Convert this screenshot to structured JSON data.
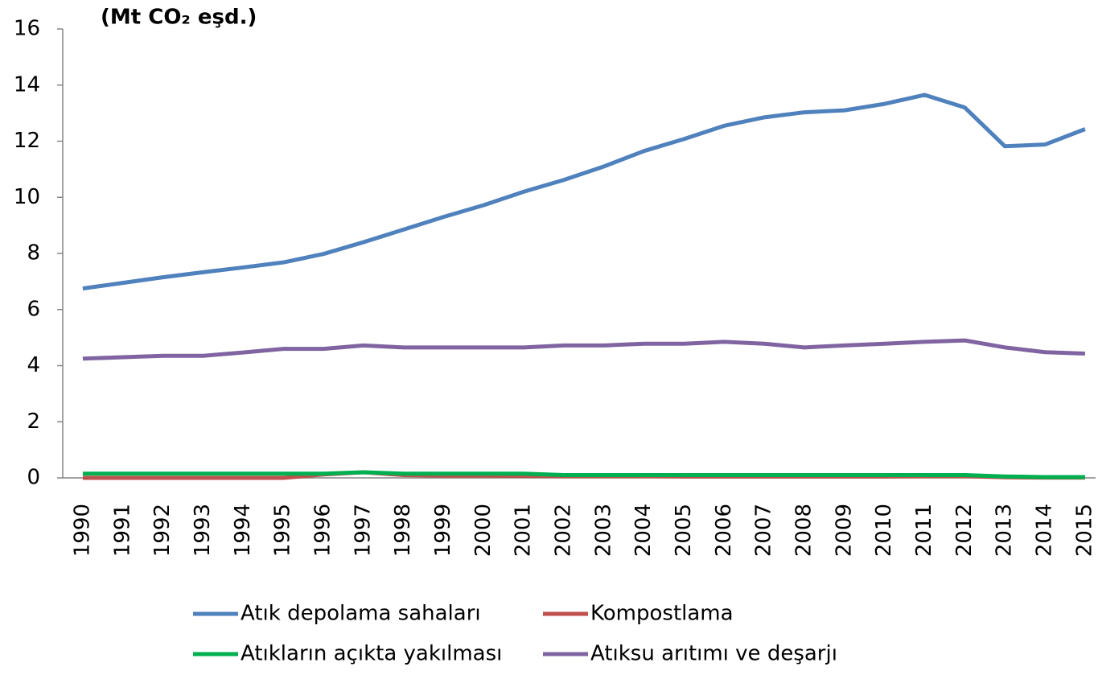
{
  "chart_data": {
    "type": "line",
    "y_label": "(Mt CO₂ eşd.)",
    "categories": [
      "1990",
      "1991",
      "1992",
      "1993",
      "1994",
      "1995",
      "1996",
      "1997",
      "1998",
      "1999",
      "2000",
      "2001",
      "2002",
      "2003",
      "2004",
      "2005",
      "2006",
      "2007",
      "2008",
      "2009",
      "2010",
      "2011",
      "2012",
      "2013",
      "2014",
      "2015"
    ],
    "series": [
      {
        "name": "Atık depolama sahaları",
        "color": "#4f81bd",
        "values": [
          6.75,
          6.95,
          7.15,
          7.33,
          7.5,
          7.68,
          7.98,
          8.4,
          8.85,
          9.3,
          9.72,
          10.2,
          10.62,
          11.1,
          11.65,
          12.08,
          12.55,
          12.85,
          13.03,
          13.1,
          13.33,
          13.65,
          13.2,
          11.82,
          11.88,
          12.43
        ]
      },
      {
        "name": "Kompostlama",
        "color": "#c0504d",
        "values": [
          0,
          0,
          0,
          0,
          0,
          0,
          0.12,
          0.2,
          0.1,
          0.08,
          0.08,
          0.07,
          0.06,
          0.06,
          0.06,
          0.05,
          0.05,
          0.05,
          0.05,
          0.05,
          0.05,
          0.06,
          0.06,
          0.02,
          0.01,
          0.01
        ]
      },
      {
        "name": "Atıkların açıkta yakılması",
        "color": "#00b050",
        "values": [
          0.15,
          0.15,
          0.15,
          0.15,
          0.15,
          0.15,
          0.15,
          0.2,
          0.15,
          0.15,
          0.15,
          0.15,
          0.1,
          0.1,
          0.1,
          0.1,
          0.1,
          0.1,
          0.1,
          0.1,
          0.1,
          0.1,
          0.1,
          0.05,
          0.03,
          0.03
        ]
      },
      {
        "name": "Atıksu arıtımı ve deşarjı",
        "color": "#8064a2",
        "values": [
          4.25,
          4.3,
          4.35,
          4.35,
          4.47,
          4.6,
          4.6,
          4.72,
          4.65,
          4.65,
          4.65,
          4.65,
          4.72,
          4.72,
          4.78,
          4.78,
          4.85,
          4.78,
          4.65,
          4.72,
          4.78,
          4.85,
          4.9,
          4.65,
          4.48,
          4.43
        ]
      }
    ],
    "ylim": [
      0,
      16
    ],
    "yticks": [
      0,
      2,
      4,
      6,
      8,
      10,
      12,
      14,
      16
    ],
    "grid": false
  }
}
